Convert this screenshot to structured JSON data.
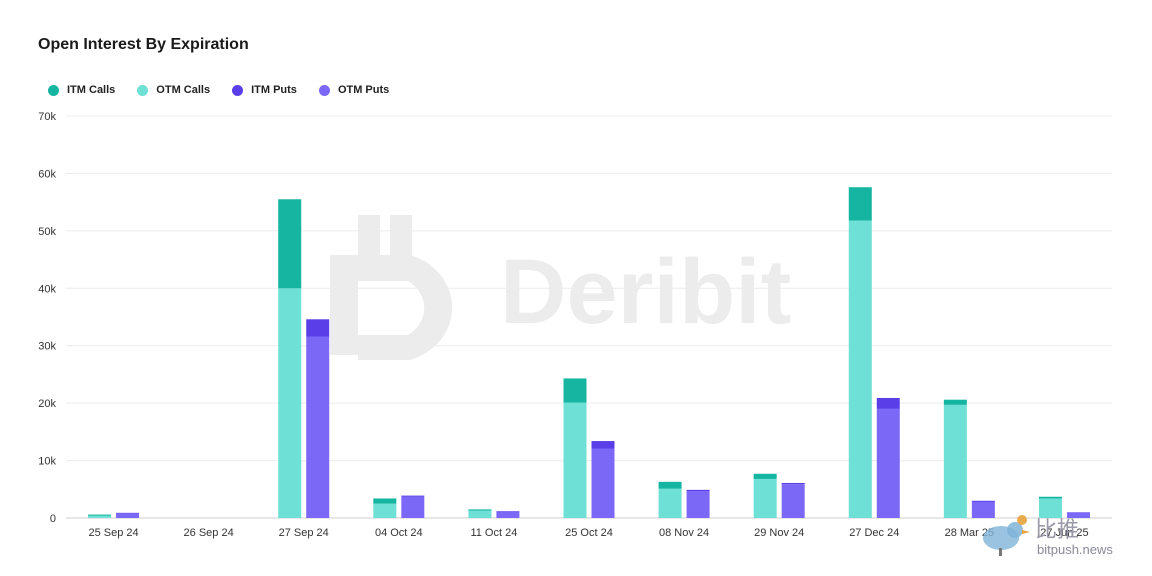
{
  "title": "Open Interest By Expiration",
  "watermark": "Deribit",
  "colors": {
    "itm_calls": "#15b5a2",
    "otm_calls": "#6ee0d5",
    "itm_puts": "#5a3ee8",
    "otm_puts": "#7b68f6"
  },
  "legend": [
    {
      "label": "ITM Calls",
      "color": "#15b5a2"
    },
    {
      "label": "OTM Calls",
      "color": "#6ee0d5"
    },
    {
      "label": "ITM Puts",
      "color": "#5a3ee8"
    },
    {
      "label": "OTM Puts",
      "color": "#7b68f6"
    }
  ],
  "bitpush": {
    "cn": "比推",
    "url": "bitpush.news"
  },
  "chart_data": {
    "type": "bar",
    "stacked": true,
    "categories": [
      "25 Sep 24",
      "26 Sep 24",
      "27 Sep 24",
      "04 Oct 24",
      "11 Oct 24",
      "25 Oct 24",
      "08 Nov 24",
      "29 Nov 24",
      "27 Dec 24",
      "28 Mar 25",
      "27 Jun 25"
    ],
    "yticks": [
      "0",
      "10k",
      "20k",
      "30k",
      "40k",
      "50k",
      "60k",
      "70k"
    ],
    "ylim": [
      0,
      70000
    ],
    "grid": true,
    "legend_position": "top-left",
    "calls": [
      {
        "otm": 400,
        "itm": 200
      },
      {
        "otm": 0,
        "itm": 0
      },
      {
        "otm": 40000,
        "itm": 15500
      },
      {
        "otm": 2500,
        "itm": 900
      },
      {
        "otm": 1300,
        "itm": 200
      },
      {
        "otm": 20100,
        "itm": 4200
      },
      {
        "otm": 5100,
        "itm": 1200
      },
      {
        "otm": 6800,
        "itm": 900
      },
      {
        "otm": 51800,
        "itm": 5800
      },
      {
        "otm": 19700,
        "itm": 900
      },
      {
        "otm": 3400,
        "itm": 300
      }
    ],
    "puts": [
      {
        "otm": 800,
        "itm": 100
      },
      {
        "otm": 0,
        "itm": 0
      },
      {
        "otm": 31600,
        "itm": 3000
      },
      {
        "otm": 3700,
        "itm": 200
      },
      {
        "otm": 1100,
        "itm": 100
      },
      {
        "otm": 12100,
        "itm": 1300
      },
      {
        "otm": 4700,
        "itm": 200
      },
      {
        "otm": 5900,
        "itm": 200
      },
      {
        "otm": 19000,
        "itm": 1900
      },
      {
        "otm": 2800,
        "itm": 200
      },
      {
        "otm": 900,
        "itm": 100
      }
    ]
  }
}
